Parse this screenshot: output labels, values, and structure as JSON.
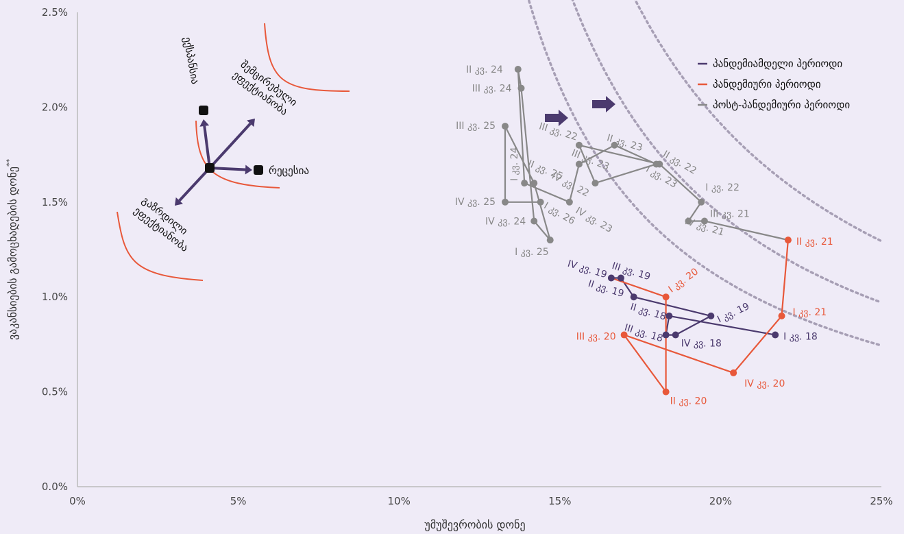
{
  "chart_data": {
    "type": "scatter",
    "xlabel": "უმუშევრობის დონე",
    "ylabel": "ვაკანსიების გამოცხადების დონე",
    "ylabel_suffix": "**",
    "xlim": [
      0,
      25
    ],
    "ylim": [
      0,
      2.5
    ],
    "x_ticks": [
      {
        "v": 0,
        "label": "0%"
      },
      {
        "v": 5,
        "label": "5%"
      },
      {
        "v": 10,
        "label": "10%"
      },
      {
        "v": 15,
        "label": "15%"
      },
      {
        "v": 20,
        "label": "20%"
      },
      {
        "v": 25,
        "label": "25%"
      }
    ],
    "y_ticks": [
      {
        "v": 0,
        "label": "0.0%"
      },
      {
        "v": 0.5,
        "label": "0.5%"
      },
      {
        "v": 1.0,
        "label": "1.0%"
      },
      {
        "v": 1.5,
        "label": "1.5%"
      },
      {
        "v": 2.0,
        "label": "2.0%"
      },
      {
        "v": 2.5,
        "label": "2.5%"
      }
    ],
    "legend_position": "top-right",
    "colors": {
      "pre": "#4b3a6e",
      "pandemic": "#e8583a",
      "post": "#888888",
      "beveridge": "#a79fb5",
      "diagram_curve": "#e8583a",
      "diagram_arrow": "#4b3a6e"
    },
    "series": [
      {
        "name": "პანდემიამდელი პერიოდი",
        "key": "pre",
        "points": [
          {
            "x": 21.7,
            "y": 0.8,
            "label": "I კვ. 18"
          },
          {
            "x": 18.4,
            "y": 0.9,
            "label": "II კვ. 18"
          },
          {
            "x": 18.3,
            "y": 0.8,
            "label": "III კვ. 18"
          },
          {
            "x": 18.6,
            "y": 0.8,
            "label": "IV კვ. 18"
          },
          {
            "x": 19.7,
            "y": 0.9,
            "label": "I კვ. 19"
          },
          {
            "x": 17.3,
            "y": 1.0,
            "label": "II კვ. 19"
          },
          {
            "x": 16.9,
            "y": 1.1,
            "label": "III კვ. 19"
          },
          {
            "x": 16.6,
            "y": 1.1,
            "label": "IV კვ. 19"
          }
        ]
      },
      {
        "name": "პანდემიური პერიოდი",
        "key": "pandemic",
        "points": [
          {
            "x": 18.3,
            "y": 1.0,
            "label": "I კვ. 20"
          },
          {
            "x": 18.3,
            "y": 0.5,
            "label": "II კვ. 20"
          },
          {
            "x": 17.0,
            "y": 0.8,
            "label": "III კვ. 20"
          },
          {
            "x": 20.4,
            "y": 0.6,
            "label": "IV კვ. 20"
          },
          {
            "x": 21.9,
            "y": 0.9,
            "label": "I კვ. 21"
          },
          {
            "x": 22.1,
            "y": 1.3,
            "label": "II კვ. 21"
          }
        ]
      },
      {
        "name": "პოსტ-პანდემიური პერიოდი",
        "key": "post",
        "points": [
          {
            "x": 19.5,
            "y": 1.4,
            "label": "III კვ. 21"
          },
          {
            "x": 19.0,
            "y": 1.4,
            "label": "IV კვ. 21"
          },
          {
            "x": 19.4,
            "y": 1.5,
            "label": "I კვ. 22"
          },
          {
            "x": 18.1,
            "y": 1.7,
            "label": "II კვ. 22"
          },
          {
            "x": 15.6,
            "y": 1.8,
            "label": "III კვ. 22"
          },
          {
            "x": 16.1,
            "y": 1.6,
            "label": "IV კვ. 22"
          },
          {
            "x": 18.0,
            "y": 1.7,
            "label": "I კვ. 23"
          },
          {
            "x": 16.7,
            "y": 1.8,
            "label": "II კვ. 23"
          },
          {
            "x": 15.6,
            "y": 1.7,
            "label": "III კვ. 23"
          },
          {
            "x": 15.3,
            "y": 1.5,
            "label": "IV კვ. 23"
          },
          {
            "x": 13.9,
            "y": 1.6,
            "label": "I კვ. 24"
          },
          {
            "x": 13.7,
            "y": 2.2,
            "label": "II კვ. 24"
          },
          {
            "x": 13.8,
            "y": 2.1,
            "label": "III კვ. 24"
          },
          {
            "x": 14.2,
            "y": 1.4,
            "label": "IV კვ. 24"
          },
          {
            "x": 14.7,
            "y": 1.3,
            "label": "I კვ. 25"
          },
          {
            "x": 14.2,
            "y": 1.6,
            "label": "II კვ. 25"
          },
          {
            "x": 13.3,
            "y": 1.9,
            "label": "III კვ. 25"
          },
          {
            "x": 13.3,
            "y": 1.5,
            "label": "IV კვ. 25"
          },
          {
            "x": 14.4,
            "y": 1.5,
            "label": "I კვ. 26"
          }
        ]
      }
    ],
    "beveridge_curves": [
      {
        "k": 11.5,
        "x_range": [
          13.2,
          25
        ]
      },
      {
        "k": 15.0,
        "x_range": [
          15.2,
          25
        ]
      },
      {
        "k": 20.0,
        "x_range": [
          17.3,
          25
        ]
      }
    ],
    "shift_arrows": 2,
    "diagram": {
      "labels": {
        "expansion": "ექსპანსია",
        "recession": "რეცესია",
        "efficiency_down": [
          "შემცირებული",
          "ეფექტიანობა"
        ],
        "efficiency_up": [
          "გაზრდილი",
          "ეფექტიანობა"
        ]
      }
    }
  }
}
